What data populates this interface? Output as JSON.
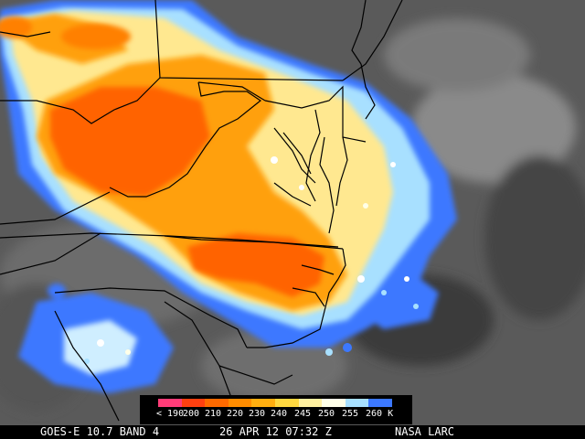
{
  "footer": {
    "satellite": "GOES-E 10.7 BAND 4",
    "datetime": "26 APR 12 07:32 Z",
    "credit": "NASA LARC"
  },
  "legend": {
    "ticks": [
      "< 190",
      "200",
      "210",
      "220",
      "230",
      "240",
      "245",
      "250",
      "255",
      "260 K"
    ],
    "colors": [
      "#ff3c78",
      "#ff4010",
      "#ff6a00",
      "#ff8c00",
      "#ffae10",
      "#ffd840",
      "#fff0a0",
      "#ffffe8",
      "#a8e0ff",
      "#3c78ff"
    ]
  },
  "palette": {
    "background": "#000000",
    "cloud_blue": "#3c78ff",
    "cloud_lightblue": "#a8e0ff",
    "cloud_orange": "#ff8c00",
    "cloud_red": "#ff6400",
    "borders": "#000000"
  }
}
